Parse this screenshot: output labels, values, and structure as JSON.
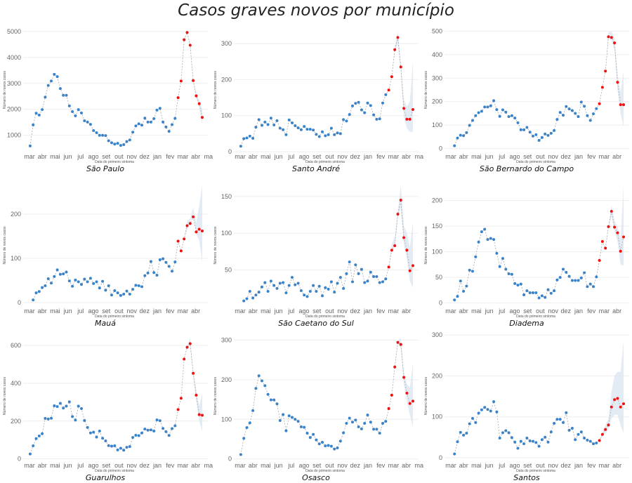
{
  "title": "Casos graves novos por município",
  "xlabel": "Data do primeiro sintoma",
  "ylabel": "Número de novos casos",
  "colors": {
    "observed": "#3a83c9",
    "nowcast": "#ee1111",
    "band": "#dce6f1",
    "line": "#aaaaaa"
  },
  "chart_data": [
    {
      "type": "scatter",
      "title": "São Paulo",
      "ylim": [
        370,
        5130
      ],
      "yticks": [
        1000,
        2000,
        3000,
        4000,
        5000
      ],
      "xticks": [
        "mar",
        "abr",
        "mai",
        "jun",
        "jul",
        "ago",
        "set",
        "out",
        "nov",
        "dez",
        "jan",
        "fev",
        "mar",
        "abr",
        "ma"
      ],
      "values": [
        590,
        1400,
        1850,
        1780,
        1990,
        2470,
        2920,
        3090,
        3350,
        3260,
        2800,
        2540,
        2540,
        2130,
        1910,
        1750,
        1990,
        1860,
        1560,
        1510,
        1420,
        1180,
        1100,
        1000,
        1000,
        990,
        790,
        710,
        660,
        690,
        610,
        640,
        760,
        820,
        1120,
        1360,
        1440,
        1390,
        1660,
        1510,
        1510,
        1640,
        1970,
        2040,
        1510,
        1320,
        1150,
        1410,
        1650,
        2450,
        3090,
        4680,
        4960,
        4470,
        3110,
        2520,
        2220,
        1690
      ],
      "nowcast_count": 9,
      "band_lower": [
        2450,
        3090,
        4650,
        4930,
        4420,
        3050,
        2450,
        2100,
        1400
      ],
      "band_upper": [
        2450,
        3090,
        4720,
        5000,
        4520,
        3170,
        2600,
        2350,
        2000
      ]
    },
    {
      "type": "scatter",
      "title": "Santo André",
      "ylim": [
        0,
        343
      ],
      "yticks": [
        0,
        100,
        200,
        300
      ],
      "xticks": [
        "mar",
        "abr",
        "mai",
        "jun",
        "jul",
        "ago",
        "set",
        "out",
        "nov",
        "dez",
        "jan",
        "fev",
        "mar",
        "abr",
        "ma"
      ],
      "values": [
        15,
        36,
        38,
        43,
        37,
        68,
        89,
        73,
        82,
        75,
        93,
        74,
        86,
        65,
        61,
        47,
        88,
        80,
        72,
        66,
        61,
        70,
        62,
        62,
        60,
        48,
        42,
        55,
        44,
        47,
        65,
        47,
        52,
        50,
        89,
        85,
        103,
        127,
        134,
        137,
        116,
        108,
        135,
        128,
        102,
        90,
        91,
        135,
        158,
        171,
        208,
        283,
        317,
        235,
        120,
        90,
        90,
        117
      ],
      "nowcast_count": 9,
      "band_lower": [
        171,
        208,
        280,
        300,
        220,
        95,
        65,
        55,
        55
      ],
      "band_upper": [
        171,
        208,
        290,
        335,
        245,
        145,
        125,
        140,
        250
      ]
    },
    {
      "type": "scatter",
      "title": "São Bernardo do Campo",
      "ylim": [
        -13,
        513
      ],
      "yticks": [
        0,
        100,
        200,
        300,
        400,
        500
      ],
      "xticks": [
        "mar",
        "abr",
        "mai",
        "jun",
        "jul",
        "ago",
        "set",
        "out",
        "nov",
        "dez",
        "jan",
        "fev",
        "mar",
        "abr"
      ],
      "values": [
        12,
        45,
        57,
        55,
        68,
        99,
        120,
        140,
        153,
        159,
        177,
        177,
        182,
        204,
        166,
        137,
        165,
        155,
        136,
        140,
        130,
        110,
        80,
        80,
        90,
        70,
        53,
        59,
        35,
        47,
        62,
        56,
        65,
        77,
        124,
        154,
        142,
        179,
        169,
        162,
        150,
        136,
        198,
        180,
        140,
        120,
        148,
        170,
        191,
        261,
        330,
        476,
        473,
        450,
        282,
        187,
        187
      ],
      "nowcast_count": 9,
      "band_lower": [
        191,
        261,
        330,
        470,
        460,
        420,
        250,
        150,
        95
      ],
      "band_upper": [
        191,
        261,
        330,
        495,
        500,
        470,
        320,
        240,
        330
      ]
    },
    {
      "type": "scatter",
      "title": "Mauá",
      "ylim": [
        -8,
        267
      ],
      "yticks": [
        0,
        100,
        200
      ],
      "xticks": [
        "mar",
        "abr",
        "mai",
        "jun",
        "jul",
        "ago",
        "set",
        "out",
        "nov",
        "dez",
        "jan",
        "fev",
        "mar",
        "abr"
      ],
      "values": [
        6,
        22,
        25,
        34,
        38,
        54,
        44,
        59,
        74,
        64,
        65,
        69,
        49,
        37,
        51,
        47,
        41,
        53,
        47,
        55,
        43,
        47,
        33,
        48,
        28,
        38,
        17,
        27,
        22,
        16,
        19,
        26,
        19,
        30,
        39,
        38,
        36,
        61,
        67,
        93,
        68,
        62,
        97,
        99,
        91,
        82,
        71,
        92,
        139,
        117,
        144,
        174,
        179,
        194,
        160,
        166,
        162
      ],
      "nowcast_count": 9,
      "band_lower": [
        139,
        117,
        144,
        165,
        185,
        200,
        155,
        140,
        92
      ],
      "band_upper": [
        139,
        117,
        144,
        185,
        190,
        215,
        180,
        220,
        265
      ]
    },
    {
      "type": "scatter",
      "title": "São Caetano do Sul",
      "ylim": [
        1,
        166
      ],
      "yticks": [
        50,
        100,
        150
      ],
      "xticks": [
        "mar",
        "abr",
        "mai",
        "jun",
        "jul",
        "ago",
        "set",
        "out",
        "nov",
        "dez",
        "jan",
        "fev",
        "mar",
        "abr"
      ],
      "values": [
        8,
        11,
        21,
        12,
        16,
        20,
        27,
        33,
        21,
        35,
        29,
        25,
        32,
        33,
        19,
        29,
        40,
        30,
        32,
        22,
        16,
        14,
        21,
        29,
        21,
        28,
        15,
        26,
        24,
        34,
        20,
        32,
        40,
        25,
        45,
        61,
        34,
        57,
        45,
        51,
        33,
        35,
        47,
        41,
        41,
        33,
        34,
        38,
        54,
        77,
        83,
        126,
        145,
        94,
        77,
        49,
        56
      ],
      "nowcast_count": 9,
      "band_lower": [
        54,
        77,
        83,
        120,
        135,
        85,
        65,
        35,
        26
      ],
      "band_upper": [
        54,
        85,
        95,
        130,
        165,
        110,
        100,
        80,
        115
      ]
    },
    {
      "type": "scatter",
      "title": "Diadema",
      "ylim": [
        -6,
        231
      ],
      "yticks": [
        0,
        50,
        100,
        150,
        200
      ],
      "xticks": [
        "mar",
        "abr",
        "mai",
        "jun",
        "jul",
        "ago",
        "set",
        "out",
        "nov",
        "dez",
        "jan",
        "fev",
        "mar",
        "abr"
      ],
      "values": [
        6,
        13,
        43,
        23,
        33,
        64,
        62,
        90,
        119,
        139,
        144,
        124,
        126,
        124,
        97,
        71,
        87,
        66,
        57,
        56,
        38,
        35,
        37,
        16,
        24,
        20,
        20,
        20,
        10,
        14,
        11,
        26,
        19,
        24,
        45,
        50,
        66,
        60,
        52,
        44,
        44,
        44,
        49,
        59,
        32,
        37,
        32,
        51,
        83,
        120,
        107,
        149,
        179,
        148,
        137,
        101,
        129
      ],
      "nowcast_count": 9,
      "band_lower": [
        83,
        120,
        107,
        145,
        170,
        140,
        120,
        75,
        73
      ],
      "band_upper": [
        83,
        120,
        107,
        150,
        190,
        160,
        150,
        125,
        230
      ]
    },
    {
      "type": "scatter",
      "title": "Guarulhos",
      "ylim": [
        -9,
        675
      ],
      "yticks": [
        0,
        200,
        400,
        600
      ],
      "xticks": [
        "mar",
        "abr",
        "mai",
        "jun",
        "jul",
        "ago",
        "set",
        "out",
        "nov",
        "dez",
        "jan",
        "fev",
        "mar",
        "abr",
        "ma"
      ],
      "values": [
        26,
        69,
        107,
        121,
        133,
        214,
        211,
        215,
        281,
        277,
        294,
        269,
        279,
        302,
        224,
        205,
        279,
        266,
        203,
        166,
        137,
        141,
        115,
        147,
        109,
        95,
        70,
        67,
        69,
        47,
        56,
        46,
        61,
        65,
        113,
        125,
        123,
        137,
        158,
        152,
        153,
        147,
        206,
        202,
        161,
        144,
        124,
        160,
        175,
        261,
        321,
        528,
        591,
        610,
        453,
        337,
        234,
        231
      ],
      "nowcast_count": 9,
      "band_lower": [
        261,
        321,
        528,
        585,
        600,
        440,
        310,
        200,
        145
      ],
      "band_upper": [
        261,
        321,
        528,
        600,
        640,
        470,
        370,
        280,
        345
      ]
    },
    {
      "type": "scatter",
      "title": "Osasco",
      "ylim": [
        -4,
        322
      ],
      "yticks": [
        0,
        100,
        200,
        300
      ],
      "xticks": [
        "mar",
        "abr",
        "mai",
        "jun",
        "jul",
        "ago",
        "set",
        "out",
        "nov",
        "dez",
        "jan",
        "fev",
        "mar",
        "abr",
        "ma"
      ],
      "values": [
        11,
        52,
        79,
        91,
        122,
        178,
        210,
        197,
        185,
        163,
        149,
        149,
        139,
        97,
        112,
        71,
        109,
        105,
        100,
        95,
        81,
        80,
        65,
        54,
        62,
        48,
        38,
        42,
        33,
        34,
        32,
        25,
        28,
        45,
        66,
        90,
        103,
        93,
        98,
        81,
        76,
        90,
        111,
        93,
        75,
        75,
        65,
        90,
        95,
        127,
        161,
        232,
        294,
        289,
        206,
        166,
        140,
        146
      ],
      "nowcast_count": 9,
      "band_lower": [
        127,
        161,
        232,
        290,
        280,
        190,
        145,
        110,
        80
      ],
      "band_upper": [
        127,
        161,
        232,
        300,
        305,
        220,
        190,
        180,
        240
      ]
    },
    {
      "type": "scatter",
      "title": "Santos",
      "ylim": [
        -7,
        309
      ],
      "yticks": [
        0,
        100,
        200,
        300
      ],
      "xticks": [
        "mar",
        "abr",
        "mai",
        "jun",
        "jul",
        "ago",
        "set",
        "out",
        "nov",
        "dez",
        "jan",
        "fev",
        "mar",
        "abr"
      ],
      "values": [
        9,
        39,
        62,
        55,
        60,
        83,
        96,
        86,
        109,
        117,
        123,
        118,
        114,
        137,
        112,
        48,
        61,
        66,
        61,
        49,
        38,
        23,
        40,
        34,
        48,
        41,
        40,
        37,
        28,
        44,
        50,
        38,
        63,
        84,
        94,
        94,
        86,
        110,
        67,
        72,
        44,
        57,
        63,
        48,
        43,
        40,
        34,
        36,
        42,
        57,
        69,
        80,
        124,
        142,
        145,
        124,
        132
      ],
      "nowcast_count": 9,
      "band_lower": [
        42,
        52,
        60,
        70,
        95,
        105,
        105,
        80,
        60
      ],
      "band_upper": [
        42,
        62,
        80,
        95,
        160,
        200,
        210,
        210,
        285
      ]
    }
  ]
}
